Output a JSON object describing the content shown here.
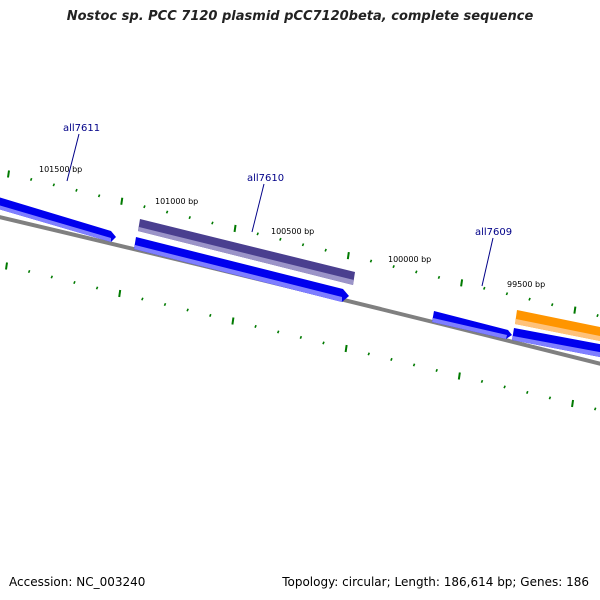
{
  "title": "Nostoc sp. PCC 7120 plasmid pCC7120beta, complete sequence",
  "footer": {
    "accession_label": "Accession:",
    "accession": "NC_003240",
    "topology_label": "Topology:",
    "topology": "circular",
    "length_label": "Length:",
    "length": "186,614 bp",
    "genes_label": "Genes:",
    "genes": "186"
  },
  "map": {
    "position_labels": [
      "101500 bp",
      "101000 bp",
      "100500 bp",
      "100000 bp",
      "99500 bp"
    ],
    "gene_labels": [
      "all7611",
      "all7610",
      "all7609"
    ],
    "colors": {
      "backbone": "#808080",
      "tick": "#007a00",
      "gene_blue": "#0000ee",
      "gene_purple": "#4a3f8f",
      "gene_orange": "#ff9500",
      "label_blue": "#000088"
    }
  }
}
